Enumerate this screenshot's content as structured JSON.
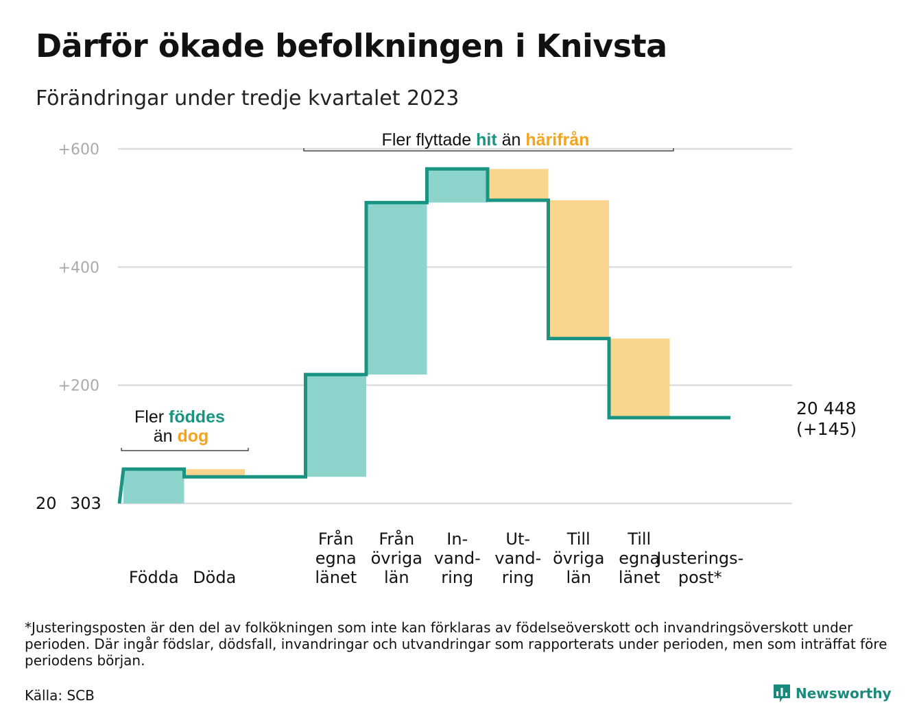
{
  "title": "Därför ökade befolkningen i Knivsta",
  "subtitle": "Förändringar under tredje kvartalet 2023",
  "colors": {
    "positive_fill": "#8dd5cc",
    "negative_fill": "#fad58e",
    "line": "#1a9482",
    "accent_teal": "#1a9482",
    "accent_orange": "#f5a31a",
    "grid": "#dddddd",
    "tick_text": "#aaaaaa"
  },
  "chart_data": {
    "type": "waterfall",
    "start_value": 20303,
    "start_label_left": "20",
    "start_label_right": "303",
    "end_label_line1": "20 448",
    "end_label_line2": "(+145)",
    "ylim": [
      0,
      600
    ],
    "yticks": [
      {
        "value": 200,
        "label": "+200"
      },
      {
        "value": 400,
        "label": "+400"
      },
      {
        "value": 600,
        "label": "+600"
      }
    ],
    "grid": true,
    "steps": [
      {
        "label": [
          "Födda"
        ],
        "delta": 58,
        "kind": "positive"
      },
      {
        "label": [
          "Döda"
        ],
        "delta": -13,
        "kind": "negative"
      },
      {
        "label": [],
        "delta": 0,
        "kind": "gap"
      },
      {
        "label": [
          "Från",
          "egna",
          "länet"
        ],
        "delta": 173,
        "kind": "positive"
      },
      {
        "label": [
          "Från",
          "övriga",
          "län"
        ],
        "delta": 291,
        "kind": "positive"
      },
      {
        "label": [
          "In-",
          "vand-",
          "ring"
        ],
        "delta": 57,
        "kind": "positive"
      },
      {
        "label": [
          "Ut-",
          "vand-",
          "ring"
        ],
        "delta": -53,
        "kind": "negative"
      },
      {
        "label": [
          "Till",
          "övriga",
          "län"
        ],
        "delta": -234,
        "kind": "negative"
      },
      {
        "label": [
          "Till",
          "egna",
          "länet"
        ],
        "delta": -134,
        "kind": "negative"
      },
      {
        "label": [
          "Justerings-",
          "post*"
        ],
        "delta": 0,
        "kind": "adjustment"
      }
    ],
    "annotations": [
      {
        "line1": [
          {
            "text": "Fler ",
            "style": "plain"
          },
          {
            "text": "föddes",
            "style": "teal"
          }
        ],
        "line2": [
          {
            "text": "än ",
            "style": "plain"
          },
          {
            "text": "dog",
            "style": "orange"
          }
        ]
      },
      {
        "line1": [
          {
            "text": "Fler flyttade ",
            "style": "plain"
          },
          {
            "text": "hit",
            "style": "teal"
          },
          {
            "text": " än ",
            "style": "plain"
          },
          {
            "text": "härifrån",
            "style": "orange"
          }
        ]
      }
    ]
  },
  "footnote": "*Justeringsposten är den del av folkökningen som inte kan förklaras av födelseöverskott och invandringsöverskott under perioden. Där ingår födslar, dödsfall, invandringar och utvandringar som rapporterats under perioden, men som inträffat före periodens början.",
  "source": "Källa: SCB",
  "brand": {
    "name": "Newsworthy",
    "icon": "newsworthy-logo-icon"
  }
}
